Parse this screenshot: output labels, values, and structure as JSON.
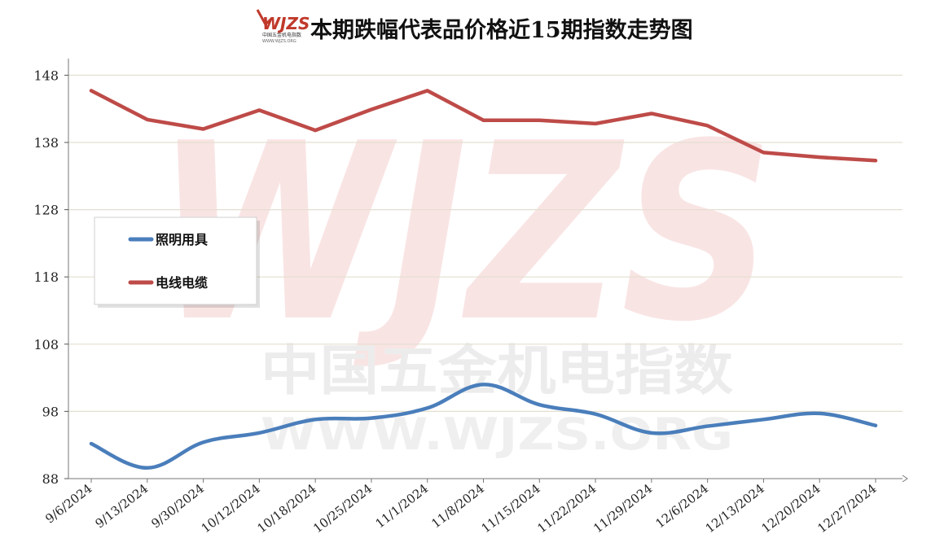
{
  "logo": {
    "mark": "WJZS",
    "caption": "中国五金机电指数",
    "url": "WWW.WJZS.ORG"
  },
  "watermark": {
    "mark": "WJZS",
    "line1": "中国五金机电指数",
    "line2": "WWW.WJZS.ORG"
  },
  "chart_data": {
    "type": "line",
    "title": "本期跌幅代表品价格近15期指数走势图",
    "categories": [
      "9/6/2024",
      "9/13/2024",
      "9/30/2024",
      "10/12/2024",
      "10/18/2024",
      "10/25/2024",
      "11/1/2024",
      "11/8/2024",
      "11/15/2024",
      "11/22/2024",
      "11/29/2024",
      "12/6/2024",
      "12/13/2024",
      "12/20/2024",
      "12/27/2024"
    ],
    "yticks": [
      88,
      98,
      108,
      118,
      128,
      138,
      148
    ],
    "ylim": [
      88,
      149.5
    ],
    "grid": true,
    "legend_position": "left-middle",
    "series": [
      {
        "name": "照明用具",
        "color": "#4a7ebb",
        "smooth": true,
        "values": [
          93.2,
          89.6,
          93.4,
          94.8,
          96.8,
          97.0,
          98.5,
          102.0,
          99.0,
          97.6,
          94.8,
          95.8,
          96.8,
          97.7,
          95.9
        ]
      },
      {
        "name": "电线电缆",
        "color": "#be4b48",
        "smooth": false,
        "values": [
          145.7,
          141.4,
          140.0,
          142.8,
          139.8,
          142.9,
          145.7,
          141.3,
          141.3,
          140.8,
          142.3,
          140.5,
          136.5,
          135.8,
          135.3
        ]
      }
    ]
  }
}
